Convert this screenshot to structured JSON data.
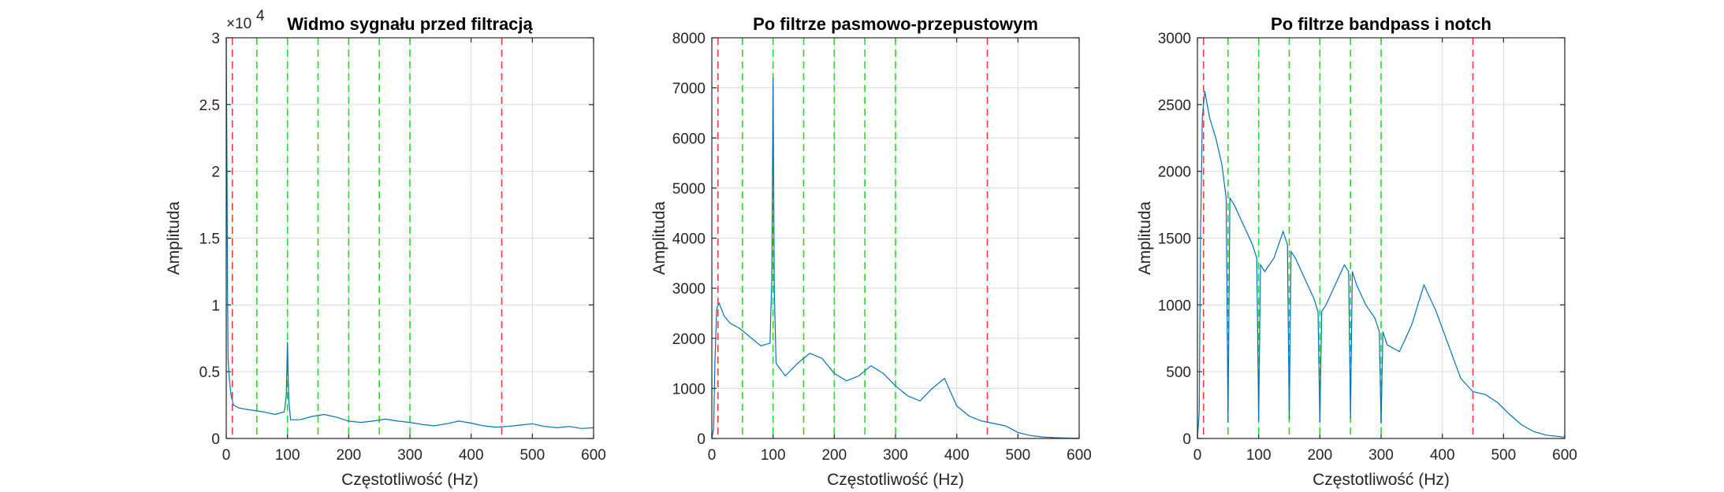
{
  "colors": {
    "signal": "#0072BD",
    "band_edge": "#FF3B3B",
    "harmonic": "#22DD22"
  },
  "chart_data": [
    {
      "type": "line",
      "title": "Widmo sygnału przed filtracją",
      "xlabel": "Częstotliwość (Hz)",
      "ylabel": "Amplituda",
      "xlim": [
        0,
        600
      ],
      "ylim": [
        0,
        30000
      ],
      "xticks": [
        "0",
        "100",
        "200",
        "300",
        "400",
        "500",
        "600"
      ],
      "yticks": [
        "0",
        "0.5",
        "1",
        "1.5",
        "2",
        "2.5",
        "3"
      ],
      "yexponent": "4",
      "yexponent_base": "×10",
      "grid": true,
      "band_edges_hz": [
        10,
        450
      ],
      "harmonics_hz": [
        50,
        100,
        150,
        200,
        250,
        300
      ],
      "series": [
        {
          "x": [
            0,
            1,
            2,
            3,
            5,
            8,
            12,
            20,
            30,
            45,
            60,
            80,
            95,
            98,
            100,
            102,
            105,
            120,
            140,
            160,
            180,
            200,
            220,
            240,
            260,
            280,
            300,
            320,
            340,
            360,
            380,
            400,
            420,
            440,
            460,
            480,
            500,
            520,
            540,
            560,
            580,
            600
          ],
          "y": [
            30000,
            22000,
            12000,
            6000,
            4500,
            3200,
            2500,
            2300,
            2200,
            2100,
            2000,
            1800,
            2000,
            3200,
            7200,
            3000,
            1400,
            1400,
            1650,
            1800,
            1600,
            1300,
            1200,
            1300,
            1450,
            1300,
            1200,
            1050,
            950,
            1100,
            1300,
            1150,
            950,
            850,
            900,
            1000,
            1100,
            900,
            800,
            900,
            750,
            800
          ]
        }
      ]
    },
    {
      "type": "line",
      "title": "Po filtrze pasmowo-przepustowym",
      "xlabel": "Częstotliwość (Hz)",
      "ylabel": "Amplituda",
      "xlim": [
        0,
        600
      ],
      "ylim": [
        0,
        8000
      ],
      "xticks": [
        "0",
        "100",
        "200",
        "300",
        "400",
        "500",
        "600"
      ],
      "yticks": [
        "0",
        "1000",
        "2000",
        "3000",
        "4000",
        "5000",
        "6000",
        "7000",
        "8000"
      ],
      "grid": true,
      "band_edges_hz": [
        10,
        450
      ],
      "harmonics_hz": [
        50,
        100,
        150,
        200,
        250,
        300
      ],
      "series": [
        {
          "x": [
            0,
            3,
            5,
            8,
            12,
            20,
            30,
            45,
            60,
            80,
            95,
            98,
            100,
            102,
            105,
            120,
            140,
            160,
            180,
            200,
            220,
            240,
            260,
            280,
            300,
            320,
            340,
            360,
            380,
            400,
            420,
            440,
            460,
            480,
            500,
            520,
            540,
            560,
            580,
            600
          ],
          "y": [
            0,
            200,
            1500,
            2600,
            2700,
            2450,
            2300,
            2200,
            2050,
            1850,
            1900,
            3200,
            7200,
            3000,
            1500,
            1250,
            1500,
            1700,
            1600,
            1300,
            1150,
            1250,
            1450,
            1300,
            1050,
            850,
            750,
            1000,
            1200,
            650,
            450,
            350,
            300,
            250,
            120,
            60,
            30,
            15,
            8,
            5
          ]
        }
      ]
    },
    {
      "type": "line",
      "title": "Po filtrze bandpass i notch",
      "xlabel": "Częstotliwość (Hz)",
      "ylabel": "Amplituda",
      "xlim": [
        0,
        600
      ],
      "ylim": [
        0,
        3000
      ],
      "xticks": [
        "0",
        "100",
        "200",
        "300",
        "400",
        "500",
        "600"
      ],
      "yticks": [
        "0",
        "500",
        "1000",
        "1500",
        "2000",
        "2500",
        "3000"
      ],
      "grid": true,
      "band_edges_hz": [
        10,
        450
      ],
      "harmonics_hz": [
        50,
        100,
        150,
        200,
        250,
        300
      ],
      "series": [
        {
          "x": [
            0,
            3,
            5,
            8,
            12,
            20,
            30,
            40,
            47,
            50,
            53,
            60,
            75,
            90,
            97,
            100,
            103,
            110,
            125,
            140,
            147,
            150,
            153,
            160,
            175,
            190,
            197,
            200,
            203,
            210,
            225,
            240,
            247,
            250,
            253,
            260,
            275,
            290,
            297,
            300,
            303,
            310,
            330,
            350,
            370,
            390,
            410,
            430,
            450,
            470,
            490,
            510,
            530,
            550,
            570,
            600
          ],
          "y": [
            0,
            200,
            1500,
            2400,
            2600,
            2400,
            2250,
            2050,
            1800,
            120,
            1800,
            1750,
            1600,
            1450,
            1350,
            130,
            1300,
            1250,
            1350,
            1550,
            1450,
            140,
            1400,
            1350,
            1200,
            1050,
            950,
            120,
            950,
            1000,
            1150,
            1300,
            1250,
            150,
            1250,
            1150,
            1000,
            900,
            800,
            110,
            800,
            700,
            650,
            850,
            1150,
            950,
            700,
            450,
            350,
            330,
            270,
            180,
            100,
            50,
            25,
            10
          ]
        }
      ]
    }
  ]
}
